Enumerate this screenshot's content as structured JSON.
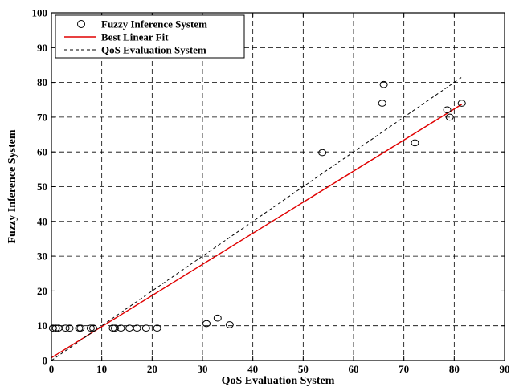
{
  "chart_data": {
    "type": "scatter",
    "title": "",
    "xlabel": "QoS Evaluation System",
    "ylabel": "Fuzzy Inference System",
    "xlim": [
      0,
      90
    ],
    "ylim": [
      0,
      100
    ],
    "xticks": [
      0,
      10,
      20,
      30,
      40,
      50,
      60,
      70,
      80,
      90
    ],
    "yticks": [
      0,
      10,
      20,
      30,
      40,
      50,
      60,
      70,
      80,
      90,
      100
    ],
    "grid": true,
    "legend_position": "top-left",
    "series": [
      {
        "name": "Fuzzy Inference System",
        "kind": "scatter",
        "marker": "circle-open",
        "color": "#000000",
        "points": [
          [
            0.3,
            9.3
          ],
          [
            0.9,
            9.3
          ],
          [
            1.4,
            9.3
          ],
          [
            2.8,
            9.3
          ],
          [
            3.6,
            9.3
          ],
          [
            5.5,
            9.3
          ],
          [
            5.8,
            9.3
          ],
          [
            7.8,
            9.3
          ],
          [
            8.3,
            9.3
          ],
          [
            12.2,
            9.3
          ],
          [
            12.6,
            9.3
          ],
          [
            13.8,
            9.3
          ],
          [
            15.5,
            9.3
          ],
          [
            17.0,
            9.3
          ],
          [
            18.8,
            9.3
          ],
          [
            21.0,
            9.3
          ],
          [
            30.8,
            10.6
          ],
          [
            33.0,
            12.2
          ],
          [
            35.4,
            10.3
          ],
          [
            53.8,
            59.8
          ],
          [
            65.7,
            74.0
          ],
          [
            66.0,
            79.4
          ],
          [
            72.2,
            62.6
          ],
          [
            78.6,
            72.1
          ],
          [
            79.1,
            70.0
          ],
          [
            81.5,
            74.0
          ]
        ]
      },
      {
        "name": "Best Linear Fit",
        "kind": "line",
        "style": "solid",
        "color": "#e00000",
        "x": [
          0,
          81.5
        ],
        "y": [
          0.8,
          73.7
        ]
      },
      {
        "name": "QoS Evaluation System",
        "kind": "line",
        "style": "dashed",
        "color": "#000000",
        "x": [
          0,
          81.5
        ],
        "y": [
          0,
          81.5
        ]
      }
    ]
  }
}
